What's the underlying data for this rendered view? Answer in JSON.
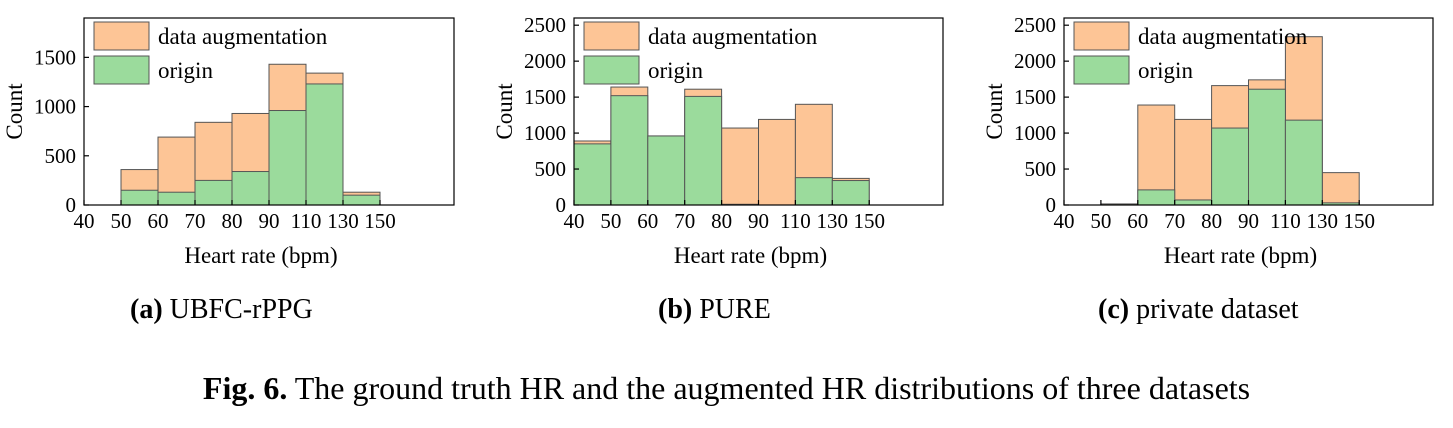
{
  "figure": {
    "number": "Fig. 6.",
    "caption": "The ground truth HR and the augmented HR distributions of three datasets"
  },
  "colors": {
    "augmentation": "#fdc596",
    "origin": "#9bdb9c",
    "edge": "#555555"
  },
  "chart_data": [
    {
      "type": "bar",
      "subtitle_label": "(a)",
      "subtitle": "UBFC-rPPG",
      "xlabel": "Heart rate (bpm)",
      "ylabel": "Count",
      "x_ticks": [
        "40",
        "50",
        "60",
        "70",
        "80",
        "90",
        "110",
        "130",
        "150"
      ],
      "xlim_bins": 10,
      "ylim": [
        0,
        1900
      ],
      "y_ticks": [
        0,
        500,
        1000,
        1500
      ],
      "legend": [
        "data augmentation",
        "origin"
      ],
      "legend_position": "top-left",
      "series": [
        {
          "name": "data augmentation",
          "values": [
            0,
            360,
            690,
            840,
            930,
            1430,
            1340,
            130,
            0,
            0
          ]
        },
        {
          "name": "origin",
          "values": [
            0,
            150,
            130,
            250,
            340,
            960,
            1230,
            100,
            0,
            0
          ]
        }
      ]
    },
    {
      "type": "bar",
      "subtitle_label": "(b)",
      "subtitle": "PURE",
      "xlabel": "Heart rate (bpm)",
      "ylabel": "Count",
      "x_ticks": [
        "40",
        "50",
        "60",
        "70",
        "80",
        "90",
        "110",
        "130",
        "150"
      ],
      "xlim_bins": 10,
      "ylim": [
        0,
        2600
      ],
      "y_ticks": [
        0,
        500,
        1000,
        1500,
        2000,
        2500
      ],
      "legend": [
        "data augmentation",
        "origin"
      ],
      "legend_position": "top-left",
      "series": [
        {
          "name": "data augmentation",
          "values": [
            890,
            1640,
            960,
            1610,
            1070,
            1190,
            1400,
            370,
            0,
            0
          ]
        },
        {
          "name": "origin",
          "values": [
            850,
            1520,
            960,
            1510,
            10,
            0,
            380,
            340,
            0,
            0
          ]
        }
      ]
    },
    {
      "type": "bar",
      "subtitle_label": "(c)",
      "subtitle": "private dataset",
      "xlabel": "Heart rate (bpm)",
      "ylabel": "Count",
      "x_ticks": [
        "40",
        "50",
        "60",
        "70",
        "80",
        "90",
        "110",
        "130",
        "150"
      ],
      "xlim_bins": 10,
      "ylim": [
        0,
        2600
      ],
      "y_ticks": [
        0,
        500,
        1000,
        1500,
        2000,
        2500
      ],
      "legend": [
        "data augmentation",
        "origin"
      ],
      "legend_position": "top-left",
      "series": [
        {
          "name": "data augmentation",
          "values": [
            0,
            15,
            1390,
            1190,
            1660,
            1740,
            2340,
            450,
            0,
            0
          ]
        },
        {
          "name": "origin",
          "values": [
            0,
            5,
            210,
            70,
            1070,
            1610,
            1180,
            30,
            0,
            0
          ]
        }
      ]
    }
  ]
}
